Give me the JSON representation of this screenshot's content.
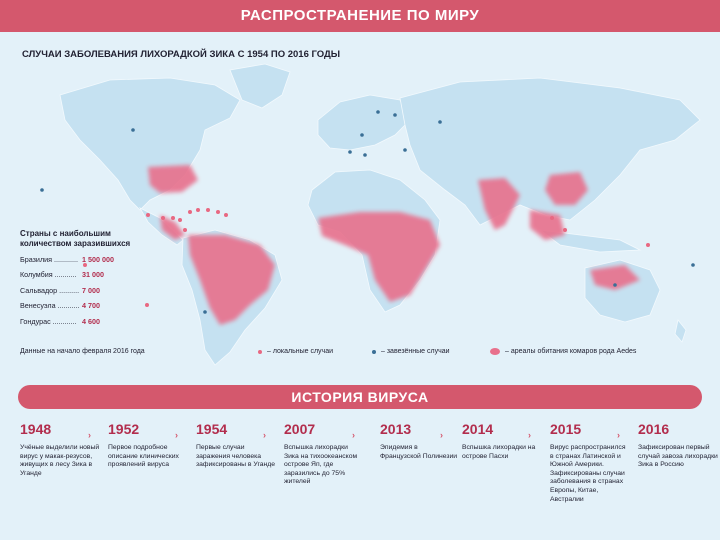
{
  "header": {
    "title": "РАСПРОСТРАНЕНИЕ ПО МИРУ"
  },
  "map": {
    "subtitle": "СЛУЧАИ ЗАБОЛЕВАНИЯ ЛИХОРАДКОЙ ЗИКА С 1954 ПО 2016 ГОДЫ",
    "colors": {
      "ocean": "#e3f1f9",
      "land": "#c5e1f1",
      "aedes_area": "#e8708c",
      "local_dot": "#e86882",
      "imported_dot": "#3a6f96",
      "accent": "#d4586d"
    }
  },
  "stats": {
    "title": "Страны с наибольшим количеством заразившихся",
    "rows": [
      {
        "country": "Бразилия ............",
        "value": "1 500 000"
      },
      {
        "country": "Колумбия ...........",
        "value": "31 000"
      },
      {
        "country": "Сальвадор ..........",
        "value": "7 000"
      },
      {
        "country": "Венесуэла ...........",
        "value": "4 700"
      },
      {
        "country": "Гондурас ............",
        "value": "4 600"
      }
    ],
    "note": "Данные на начало февраля 2016 года"
  },
  "legend": {
    "local": "– локальные случаи",
    "imported": "– завезённые случаи",
    "areas": "– ареалы обитания комаров рода Aedes"
  },
  "history": {
    "title": "ИСТОРИЯ ВИРУСА",
    "events": [
      {
        "year": "1948",
        "text": "Учёные выделили новый вирус у макак-резусов, живущих в лесу Зика в Уганде"
      },
      {
        "year": "1952",
        "text": "Первое подробное описание клинических проявлений вируса"
      },
      {
        "year": "1954",
        "text": "Первые случаи заражения человека зафиксированы в Уганде"
      },
      {
        "year": "2007",
        "text": "Вспышка лихорадки Зика на тихоокеанском острове Яп, где заразились до 75% жителей"
      },
      {
        "year": "2013",
        "text": "Эпидемия в Французской Полинезии"
      },
      {
        "year": "2014",
        "text": "Вспышка лихорадки на острове Пасхи"
      },
      {
        "year": "2015",
        "text": "Вирус распространился в странах Латинской и Южной Америки. Зафиксированы случаи заболевания в странах Европы, Китае, Австралии"
      },
      {
        "year": "2016",
        "text": "Зафиксирован первый случай завоза лихорадки Зика в Россию"
      }
    ]
  }
}
